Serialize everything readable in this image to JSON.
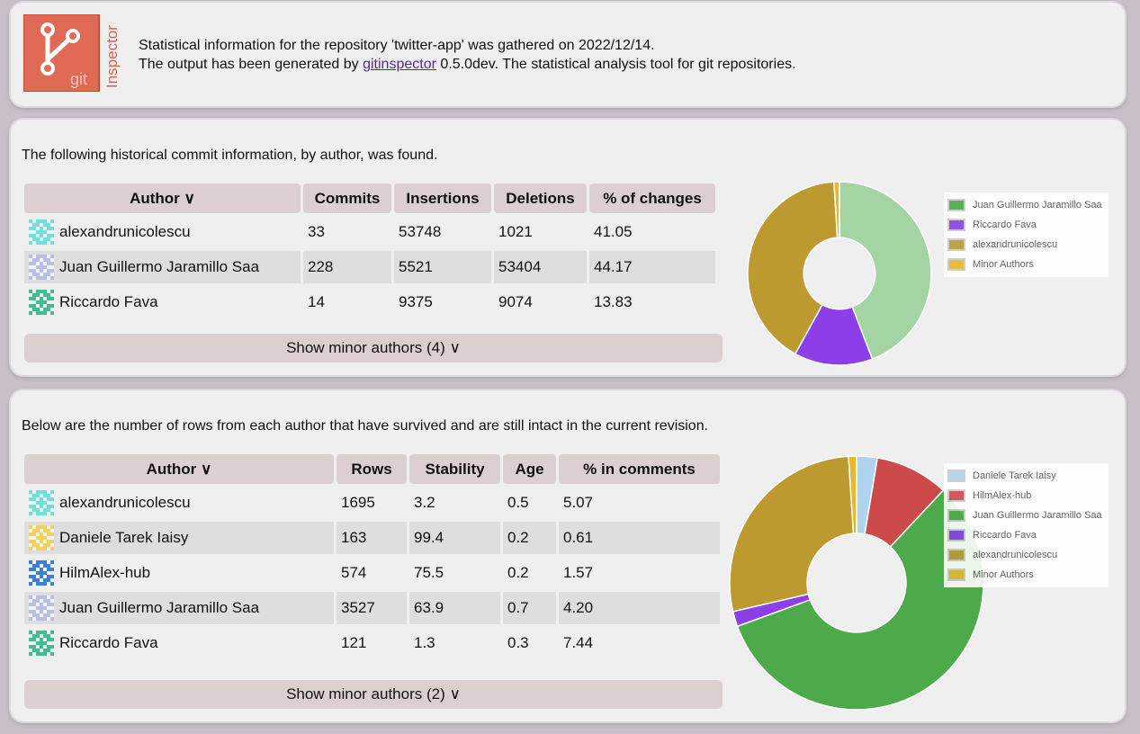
{
  "header": {
    "line1": "Statistical information for the repository 'twitter-app' was gathered on 2022/12/14.",
    "line2_pre": "The output has been generated by",
    "link": "gitinspector",
    "line2_post": "0.5.0dev. The statistical analysis tool for git repositories.",
    "logo_text_git": "git",
    "logo_text_inspector": "Inspector"
  },
  "changes": {
    "intro": "The following historical commit information, by author, was found.",
    "columns": [
      "Author ∨",
      "Commits",
      "Insertions",
      "Deletions",
      "% of changes"
    ],
    "rows": [
      {
        "author": "alexandrunicolescu",
        "avatar": "cyan",
        "commits": "33",
        "insertions": "53748",
        "deletions": "1021",
        "pct": "41.05"
      },
      {
        "author": "Juan Guillermo Jaramillo Saa",
        "avatar": "lavender",
        "commits": "228",
        "insertions": "5521",
        "deletions": "53404",
        "pct": "44.17"
      },
      {
        "author": "Riccardo Fava",
        "avatar": "teal",
        "commits": "14",
        "insertions": "9375",
        "deletions": "9074",
        "pct": "13.83"
      }
    ],
    "minor_label": "Show minor authors (4) ∨",
    "legend": [
      {
        "label": "Juan Guillermo Jaramillo Saa",
        "color": "#4caa4a"
      },
      {
        "label": "Riccardo Fava",
        "color": "#8c3ee8"
      },
      {
        "label": "alexandrunicolescu",
        "color": "#bd9a30"
      },
      {
        "label": "Minor Authors",
        "color": "#e8b830"
      }
    ]
  },
  "blame": {
    "intro": "Below are the number of rows from each author that have survived and are still intact in the current revision.",
    "columns": [
      "Author ∨",
      "Rows",
      "Stability",
      "Age",
      "% in comments"
    ],
    "rows": [
      {
        "author": "alexandrunicolescu",
        "avatar": "cyan",
        "rows": "1695",
        "stability": "3.2",
        "age": "0.5",
        "comments": "5.07"
      },
      {
        "author": "Daniele Tarek Iaisy",
        "avatar": "yellow",
        "rows": "163",
        "stability": "99.4",
        "age": "0.2",
        "comments": "0.61"
      },
      {
        "author": "HilmAlex-hub",
        "avatar": "blue",
        "rows": "574",
        "stability": "75.5",
        "age": "0.2",
        "comments": "1.57"
      },
      {
        "author": "Juan Guillermo Jaramillo Saa",
        "avatar": "lavender",
        "rows": "3527",
        "stability": "63.9",
        "age": "0.7",
        "comments": "4.20"
      },
      {
        "author": "Riccardo Fava",
        "avatar": "teal",
        "rows": "121",
        "stability": "1.3",
        "age": "0.3",
        "comments": "7.44"
      }
    ],
    "minor_label": "Show minor authors (2) ∨",
    "legend": [
      {
        "label": "Daniele Tarek Iaisy",
        "color": "#b0d4f0"
      },
      {
        "label": "HilmAlex-hub",
        "color": "#cc4a4a"
      },
      {
        "label": "Juan Guillermo Jaramillo Saa",
        "color": "#4caa4a"
      },
      {
        "label": "Riccardo Fava",
        "color": "#8c3ee8"
      },
      {
        "label": "alexandrunicolescu",
        "color": "#bd9a30"
      },
      {
        "label": "Minor Authors",
        "color": "#e8b830"
      }
    ]
  },
  "chart_data": [
    {
      "type": "pie",
      "title": "",
      "categories": [
        "Juan Guillermo Jaramillo Saa",
        "Riccardo Fava",
        "alexandrunicolescu",
        "Minor Authors"
      ],
      "values": [
        44.17,
        13.83,
        41.05,
        0.95
      ],
      "colors": [
        "#a5d4a4",
        "#8c3ee8",
        "#bd9a30",
        "#e8b830"
      ]
    },
    {
      "type": "pie",
      "title": "",
      "categories": [
        "Daniele Tarek Iaisy",
        "HilmAlex-hub",
        "Juan Guillermo Jaramillo Saa",
        "Riccardo Fava",
        "alexandrunicolescu",
        "Minor Authors"
      ],
      "values": [
        2.6,
        9.2,
        56.6,
        1.9,
        27.2,
        1.0
      ],
      "colors": [
        "#b0d4f0",
        "#cc4a4a",
        "#4caa4a",
        "#8c3ee8",
        "#bd9a30",
        "#e8b830"
      ]
    }
  ]
}
